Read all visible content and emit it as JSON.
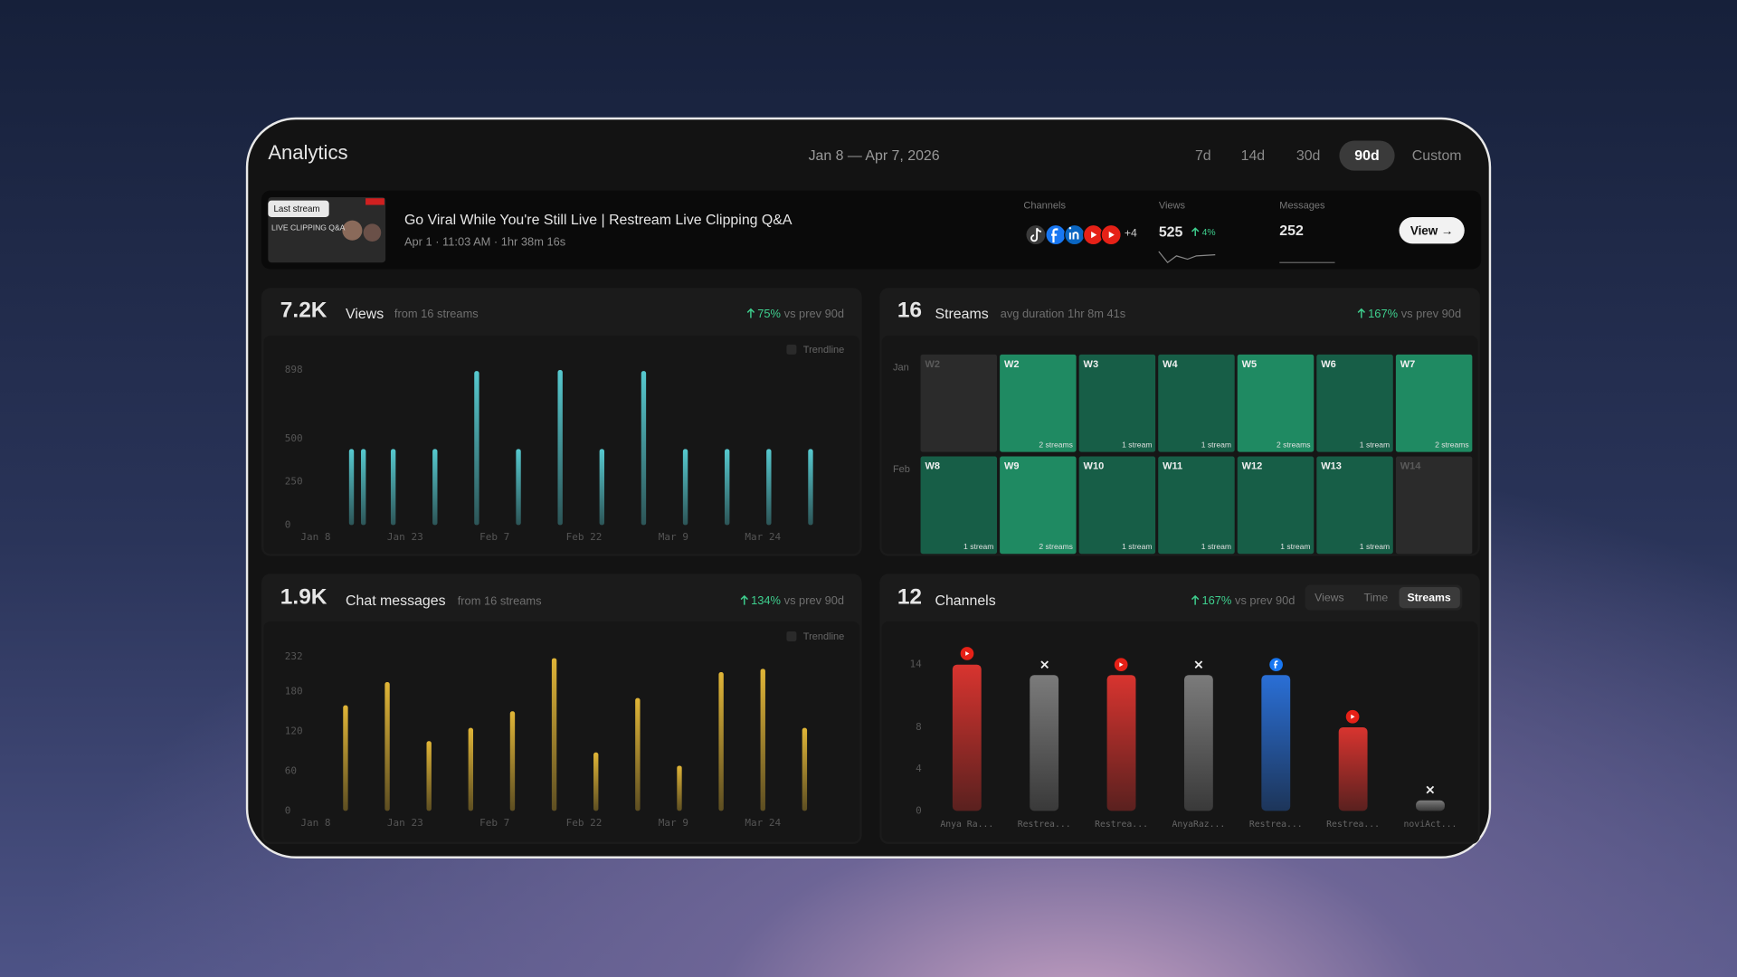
{
  "header": {
    "title": "Analytics",
    "date_range": "Jan 8 — Apr 7, 2026",
    "ranges": [
      "7d",
      "14d",
      "30d",
      "90d",
      "Custom"
    ],
    "selected_range": 3
  },
  "last_stream": {
    "badge": "Last stream",
    "thumbnail_text": "LIVE CLIPPING Q&A",
    "title": "Go Viral While You're Still Live | Restream Live Clipping Q&A",
    "meta": "Apr 1 · 11:03 AM · 1hr 38m 16s",
    "channels_label": "Channels",
    "channels_more": "+4",
    "views_label": "Views",
    "views": "525",
    "views_change": "4%",
    "messages_label": "Messages",
    "messages": "252",
    "button": "View →"
  },
  "views_panel": {
    "value": "7.2K",
    "label": "Views",
    "note": "from 16 streams",
    "change": "75%",
    "change_note": "vs prev 90d",
    "legend": "Trendline",
    "chart": {
      "type": "bar",
      "color": "#56c9cf",
      "x": [
        "Jan 14",
        "Jan 16",
        "Jan 21",
        "Jan 28",
        "Feb 4",
        "Feb 11",
        "Feb 18",
        "Feb 25",
        "Mar 4",
        "Mar 11",
        "Mar 18",
        "Mar 25",
        "Apr 1"
      ],
      "values": [
        440,
        440,
        440,
        440,
        892,
        440,
        898,
        440,
        892,
        440,
        440,
        440,
        440
      ],
      "xlim": [
        "Jan 8",
        "Apr 7"
      ],
      "xticks": [
        "Jan 8",
        "Jan 23",
        "Feb 7",
        "Feb 22",
        "Mar 9",
        "Mar 24"
      ],
      "ylim": [
        0,
        898
      ],
      "yticks": [
        0,
        250,
        500,
        898
      ]
    }
  },
  "chat_panel": {
    "value": "1.9K",
    "label": "Chat messages",
    "note": "from 16 streams",
    "change": "134%",
    "change_note": "vs prev 90d",
    "legend": "Trendline",
    "chart": {
      "type": "bar",
      "color": "#e0b537",
      "x": [
        "Jan 13",
        "Jan 20",
        "Jan 27",
        "Feb 3",
        "Feb 10",
        "Feb 17",
        "Feb 24",
        "Mar 3",
        "Mar 10",
        "Mar 17",
        "Mar 24",
        "Mar 31"
      ],
      "values": [
        159,
        194,
        105,
        125,
        150,
        230,
        88,
        170,
        68,
        209,
        214,
        125
      ],
      "xlim": [
        "Jan 8",
        "Apr 7"
      ],
      "xticks": [
        "Jan 8",
        "Jan 23",
        "Feb 7",
        "Feb 22",
        "Mar 9",
        "Mar 24"
      ],
      "ylim": [
        0,
        232
      ],
      "yticks": [
        0,
        60,
        120,
        180,
        232
      ]
    }
  },
  "streams_panel": {
    "value": "16",
    "label": "Streams",
    "note": "avg duration 1hr 8m 41s",
    "change": "167%",
    "change_note": "vs prev 90d",
    "rows": [
      "Jan",
      "Feb"
    ],
    "colors": [
      "#2b2b2b",
      "#175e47",
      "#1f8a62"
    ],
    "cells": [
      {
        "label": "W2",
        "value": null
      },
      {
        "label": "W2",
        "value": 2,
        "value_label": "2 streams"
      },
      {
        "label": "W3",
        "value": 1,
        "value_label": "1 stream"
      },
      {
        "label": "W4",
        "value": 1,
        "value_label": "1 stream"
      },
      {
        "label": "W5",
        "value": 2,
        "value_label": "2 streams"
      },
      {
        "label": "W6",
        "value": 1,
        "value_label": "1 stream"
      },
      {
        "label": "W7",
        "value": 2,
        "value_label": "2 streams"
      },
      {
        "label": "W8",
        "value": 1,
        "value_label": "1 stream"
      },
      {
        "label": "W9",
        "value": 2,
        "value_label": "2 streams"
      },
      {
        "label": "W10",
        "value": 1,
        "value_label": "1 stream"
      },
      {
        "label": "W11",
        "value": 1,
        "value_label": "1 stream"
      },
      {
        "label": "W12",
        "value": 1,
        "value_label": "1 stream"
      },
      {
        "label": "W13",
        "value": 1,
        "value_label": "1 stream"
      },
      {
        "label": "W14",
        "value": null
      }
    ]
  },
  "channels_panel": {
    "value": "12",
    "label": "Channels",
    "change": "167%",
    "change_note": "vs prev 90d",
    "tabs": [
      "Views",
      "Time",
      "Streams"
    ],
    "selected_tab": 2,
    "chart": {
      "type": "bar",
      "categories": [
        "Anya Ra...",
        "Restrea...",
        "Restrea...",
        "AnyaRaz...",
        "Restrea...",
        "Restrea...",
        "noviAct..."
      ],
      "values": [
        14,
        13,
        13,
        13,
        13,
        8,
        1
      ],
      "colors": [
        "#d8342f",
        "#7b7b7b",
        "#d8342f",
        "#7b7b7b",
        "#2a6fd6",
        "#d8342f",
        "#7b7b7b"
      ],
      "ylim": [
        0,
        14
      ],
      "yticks": [
        0,
        4,
        8,
        14
      ]
    }
  }
}
